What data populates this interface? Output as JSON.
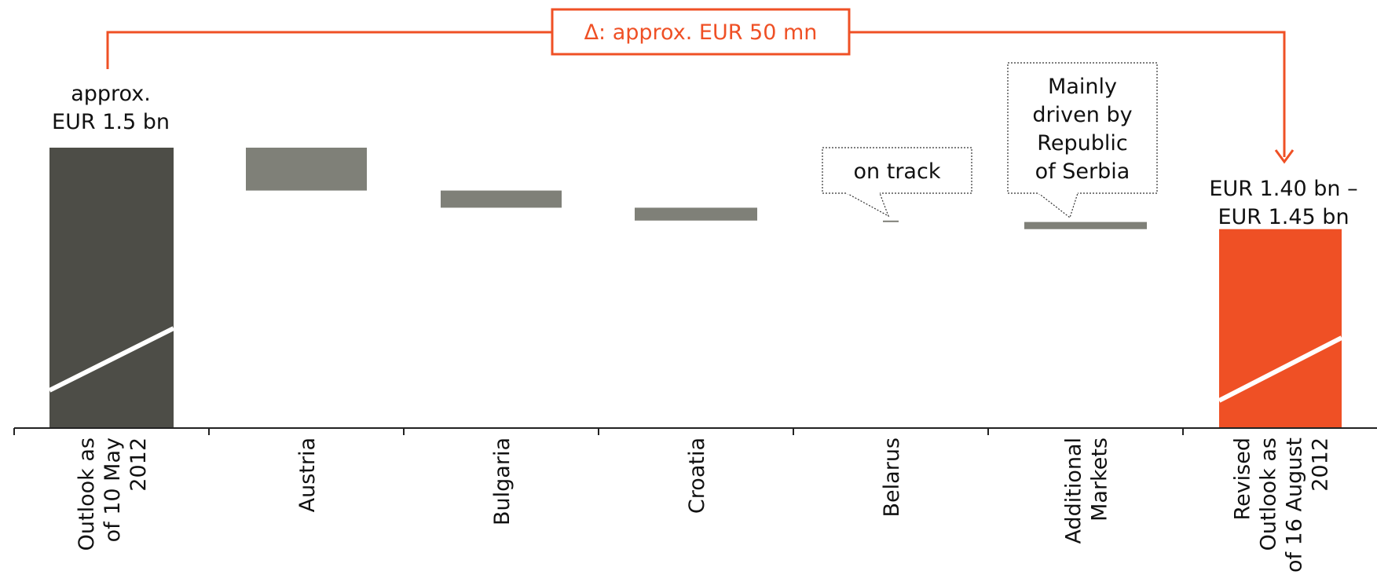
{
  "chart_data": {
    "type": "bar",
    "subtype": "waterfall",
    "title": "",
    "xlabel": "",
    "ylabel": "",
    "grid": false,
    "legend": "none",
    "categories": [
      [
        "Outlook as",
        "of 10 May",
        "2012"
      ],
      [
        "Austria"
      ],
      [
        "Bulgaria"
      ],
      [
        "Croatia"
      ],
      [
        "Belarus"
      ],
      [
        "Additional",
        "Markets"
      ],
      [
        "Revised",
        "Outlook as",
        "of 16 August",
        "2012"
      ]
    ],
    "bars": [
      {
        "category": "Outlook as of 10 May 2012",
        "kind": "total",
        "start": 0,
        "end": 1.5
      },
      {
        "category": "Austria",
        "kind": "delta",
        "start": 1.5,
        "end": 1.47
      },
      {
        "category": "Bulgaria",
        "kind": "delta",
        "start": 1.47,
        "end": 1.458
      },
      {
        "category": "Croatia",
        "kind": "delta",
        "start": 1.458,
        "end": 1.449
      },
      {
        "category": "Belarus",
        "kind": "delta",
        "start": 1.449,
        "end": 1.448
      },
      {
        "category": "Additional Markets",
        "kind": "delta",
        "start": 1.448,
        "end": 1.443
      },
      {
        "category": "Revised Outlook as of 16 August 2012",
        "kind": "total",
        "start": 0,
        "end": 1.443
      }
    ],
    "value_labels": {
      "first": [
        "approx.",
        "EUR 1.5 bn"
      ],
      "last": [
        "EUR 1.40 bn –",
        "EUR 1.45 bn"
      ]
    },
    "callouts": {
      "belarus": [
        "on track"
      ],
      "additional_markets": [
        "Mainly",
        "driven by",
        "Republic",
        "of Serbia"
      ]
    },
    "delta_label": "Δ: approx. EUR 50 mn",
    "colors": {
      "total_start": "#4d4d47",
      "delta": "#7f8078",
      "total_end": "#ef5025",
      "accent": "#ef5025",
      "axis": "#222222"
    }
  }
}
